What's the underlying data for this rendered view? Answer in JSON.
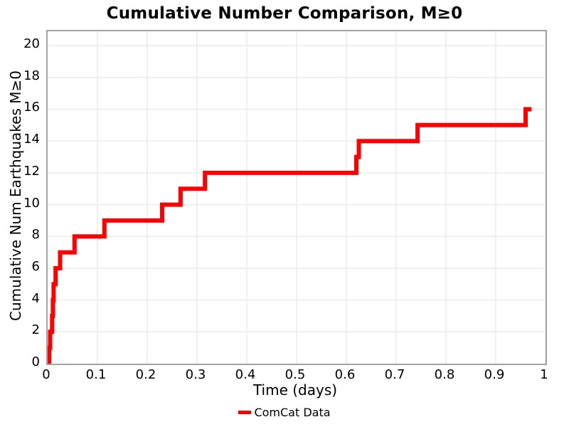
{
  "title": "Cumulative Number Comparison, M≥0",
  "colors": {
    "line": "#ff0000",
    "grid": "#ebebeb",
    "frame": "#a3a3a3",
    "text": "#000000"
  },
  "legend": {
    "entries": [
      {
        "label": "ComCat Data",
        "color": "#ff0000"
      }
    ]
  },
  "chart_data": {
    "type": "line",
    "subtype": "step-post-cumulative",
    "title": "Cumulative Number Comparison, M≥0",
    "xlabel": "Time (days)",
    "ylabel": "Cumulative Num Earthquakes M≥0",
    "xlim": [
      0,
      1
    ],
    "ylim": [
      0,
      20.9
    ],
    "grid": true,
    "legend_position": "bottom-center",
    "xticks": [
      {
        "v": 0,
        "l": "0"
      },
      {
        "v": 0.1,
        "l": "0.1"
      },
      {
        "v": 0.2,
        "l": "0.2"
      },
      {
        "v": 0.3,
        "l": "0.3"
      },
      {
        "v": 0.4,
        "l": "0.4"
      },
      {
        "v": 0.5,
        "l": "0.5"
      },
      {
        "v": 0.6,
        "l": "0.6"
      },
      {
        "v": 0.7,
        "l": "0.7"
      },
      {
        "v": 0.8,
        "l": "0.8"
      },
      {
        "v": 0.9,
        "l": "0.9"
      },
      {
        "v": 1,
        "l": "1"
      }
    ],
    "yticks": [
      {
        "v": 0,
        "l": "0"
      },
      {
        "v": 2,
        "l": "2"
      },
      {
        "v": 4,
        "l": "4"
      },
      {
        "v": 6,
        "l": "6"
      },
      {
        "v": 8,
        "l": "8"
      },
      {
        "v": 10,
        "l": "10"
      },
      {
        "v": 12,
        "l": "12"
      },
      {
        "v": 14,
        "l": "14"
      },
      {
        "v": 16,
        "l": "16"
      },
      {
        "v": 18,
        "l": "18"
      },
      {
        "v": 20,
        "l": "20"
      }
    ],
    "series": [
      {
        "name": "ComCat Data",
        "color": "#ff0000",
        "line_width": 6,
        "start_t": 0.002,
        "end_t": 0.972,
        "steps": [
          [
            0.003,
            1
          ],
          [
            0.005,
            2
          ],
          [
            0.009,
            3
          ],
          [
            0.0105,
            4
          ],
          [
            0.012,
            5
          ],
          [
            0.016,
            6
          ],
          [
            0.025,
            7
          ],
          [
            0.054,
            8
          ],
          [
            0.114,
            9
          ],
          [
            0.23,
            10
          ],
          [
            0.267,
            11
          ],
          [
            0.316,
            12
          ],
          [
            0.62,
            13
          ],
          [
            0.625,
            14
          ],
          [
            0.743,
            15
          ],
          [
            0.96,
            16
          ]
        ]
      }
    ]
  }
}
